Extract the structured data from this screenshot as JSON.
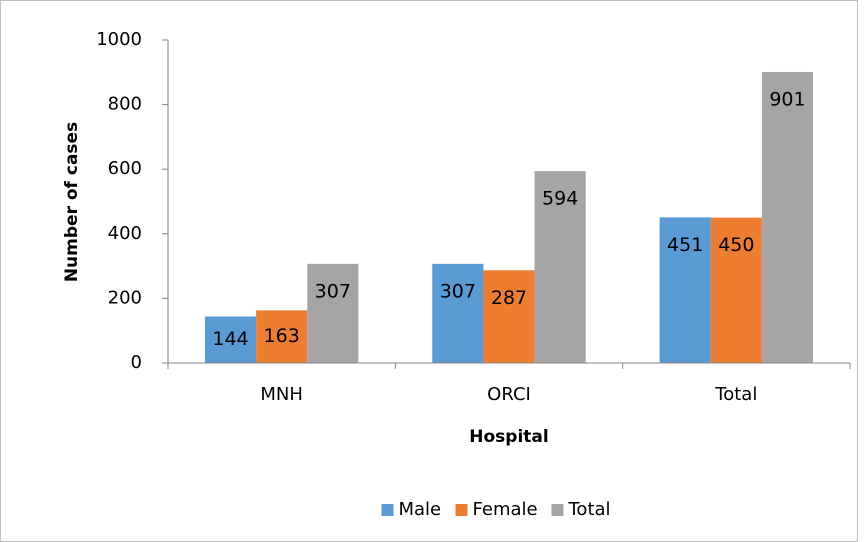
{
  "chart_data": {
    "type": "bar",
    "x_label": "Hospital",
    "y_label": "Number of cases",
    "categories": [
      "MNH",
      "ORCI",
      "Total"
    ],
    "series": [
      {
        "name": "Male",
        "color": "#5b9bd5",
        "values": [
          144,
          307,
          451
        ]
      },
      {
        "name": "Female",
        "color": "#ed7d31",
        "values": [
          163,
          287,
          450
        ]
      },
      {
        "name": "Total",
        "color": "#a5a5a5",
        "values": [
          307,
          594,
          901
        ]
      }
    ],
    "ylim": [
      0,
      1000
    ],
    "yticks": [
      0,
      200,
      400,
      600,
      800,
      1000
    ],
    "grid": false,
    "legend": "bottom",
    "data_labels": true
  }
}
